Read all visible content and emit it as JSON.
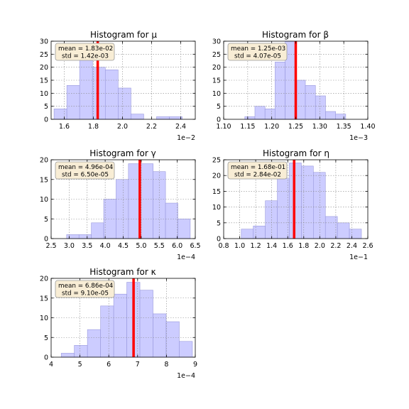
{
  "figure": {
    "background": "#ffffff"
  },
  "style": {
    "bar_fill": "#ccccff",
    "bar_stroke": "#9999dd",
    "mean_line": "#ff0000",
    "grid": "#888888",
    "annotation_fill": "#f8edd5",
    "annotation_stroke": "#999999"
  },
  "chart_data": [
    {
      "type": "bar",
      "title": "Histogram for μ",
      "x_multiplier": "1e−2",
      "xlim": [
        1.51,
        2.5
      ],
      "ylim": [
        0,
        30
      ],
      "xticks": [
        1.6,
        1.8,
        2.0,
        2.2,
        2.4
      ],
      "xtick_labels": [
        "1.6",
        "1.8",
        "2.0",
        "2.2",
        "2.4"
      ],
      "yticks": [
        0,
        5,
        10,
        15,
        20,
        25,
        30
      ],
      "ytick_labels": [
        "0",
        "5",
        "10",
        "15",
        "20",
        "25",
        "30"
      ],
      "bin_edges": [
        1.53,
        1.618,
        1.706,
        1.794,
        1.882,
        1.97,
        2.058,
        2.146,
        2.234,
        2.322,
        2.41
      ],
      "counts": [
        4,
        13,
        28,
        20,
        19,
        12,
        2,
        0,
        1,
        1
      ],
      "mean_line": 1.83,
      "annotation": {
        "mean": "mean = 1.83e-02",
        "std": "std = 1.42e-03"
      },
      "grid": true
    },
    {
      "type": "bar",
      "title": "Histogram for β",
      "x_multiplier": "1e−3",
      "xlim": [
        1.1,
        1.4
      ],
      "ylim": [
        0,
        30
      ],
      "xticks": [
        1.1,
        1.15,
        1.2,
        1.25,
        1.3,
        1.35,
        1.4
      ],
      "xtick_labels": [
        "1.10",
        "1.15",
        "1.20",
        "1.25",
        "1.30",
        "1.35",
        "1.40"
      ],
      "yticks": [
        0,
        5,
        10,
        15,
        20,
        25,
        30
      ],
      "ytick_labels": [
        "0",
        "5",
        "10",
        "15",
        "20",
        "25",
        "30"
      ],
      "bin_edges": [
        1.144,
        1.165,
        1.186,
        1.207,
        1.228,
        1.249,
        1.27,
        1.291,
        1.312,
        1.333,
        1.354
      ],
      "counts": [
        1,
        5,
        4,
        22,
        30,
        15,
        13,
        9,
        3,
        2
      ],
      "mean_line": 1.25,
      "annotation": {
        "mean": "mean = 1.25e-03",
        "std": "std = 4.07e-05"
      },
      "grid": true
    },
    {
      "type": "bar",
      "title": "Histogram for γ",
      "x_multiplier": "1e−4",
      "xlim": [
        2.5,
        6.5
      ],
      "ylim": [
        0,
        20
      ],
      "xticks": [
        2.5,
        3.0,
        3.5,
        4.0,
        4.5,
        5.0,
        5.5,
        6.0,
        6.5
      ],
      "xtick_labels": [
        "2.5",
        "3.0",
        "3.5",
        "4.0",
        "4.5",
        "5.0",
        "5.5",
        "6.0",
        "6.5"
      ],
      "yticks": [
        0,
        5,
        10,
        15,
        20
      ],
      "ytick_labels": [
        "0",
        "5",
        "10",
        "15",
        "20"
      ],
      "bin_edges": [
        2.93,
        3.273,
        3.616,
        3.959,
        4.302,
        4.645,
        4.988,
        5.331,
        5.674,
        6.017,
        6.36
      ],
      "counts": [
        1,
        1,
        4,
        10,
        15,
        19,
        19,
        17,
        9,
        5
      ],
      "mean_line": 4.96,
      "annotation": {
        "mean": "mean = 4.96e-04",
        "std": "std = 6.50e-05"
      },
      "grid": true
    },
    {
      "type": "bar",
      "title": "Histogram for η",
      "x_multiplier": "1e−1",
      "xlim": [
        0.8,
        2.6
      ],
      "ylim": [
        0,
        25
      ],
      "xticks": [
        0.8,
        1.0,
        1.2,
        1.4,
        1.6,
        1.8,
        2.0,
        2.2,
        2.4,
        2.6
      ],
      "xtick_labels": [
        "0.8",
        "1.0",
        "1.2",
        "1.4",
        "1.6",
        "1.8",
        "2.0",
        "2.2",
        "2.4",
        "2.6"
      ],
      "yticks": [
        0,
        5,
        10,
        15,
        20,
        25
      ],
      "ytick_labels": [
        "0",
        "5",
        "10",
        "15",
        "20",
        "25"
      ],
      "bin_edges": [
        1.02,
        1.17,
        1.32,
        1.47,
        1.62,
        1.77,
        1.92,
        2.07,
        2.22,
        2.37,
        2.52
      ],
      "counts": [
        3,
        4,
        12,
        19,
        24,
        23,
        21,
        7,
        5,
        3
      ],
      "mean_line": 1.68,
      "annotation": {
        "mean": "mean = 1.68e-01",
        "std": "std = 2.84e-02"
      },
      "grid": true
    },
    {
      "type": "bar",
      "title": "Histogram for κ",
      "x_multiplier": "1e−4",
      "xlim": [
        4,
        9
      ],
      "ylim": [
        0,
        20
      ],
      "xticks": [
        4,
        5,
        6,
        7,
        8,
        9
      ],
      "xtick_labels": [
        "4",
        "5",
        "6",
        "7",
        "8",
        "9"
      ],
      "yticks": [
        0,
        5,
        10,
        15,
        20
      ],
      "ytick_labels": [
        "0",
        "5",
        "10",
        "15",
        "20"
      ],
      "bin_edges": [
        4.35,
        4.805,
        5.26,
        5.715,
        6.17,
        6.625,
        7.08,
        7.535,
        7.99,
        8.445,
        8.9
      ],
      "counts": [
        1,
        3,
        7,
        13,
        16,
        19,
        17,
        11,
        9,
        4
      ],
      "mean_line": 6.86,
      "annotation": {
        "mean": "mean = 6.86e-04",
        "std": "std = 9.10e-05"
      },
      "grid": true
    }
  ]
}
